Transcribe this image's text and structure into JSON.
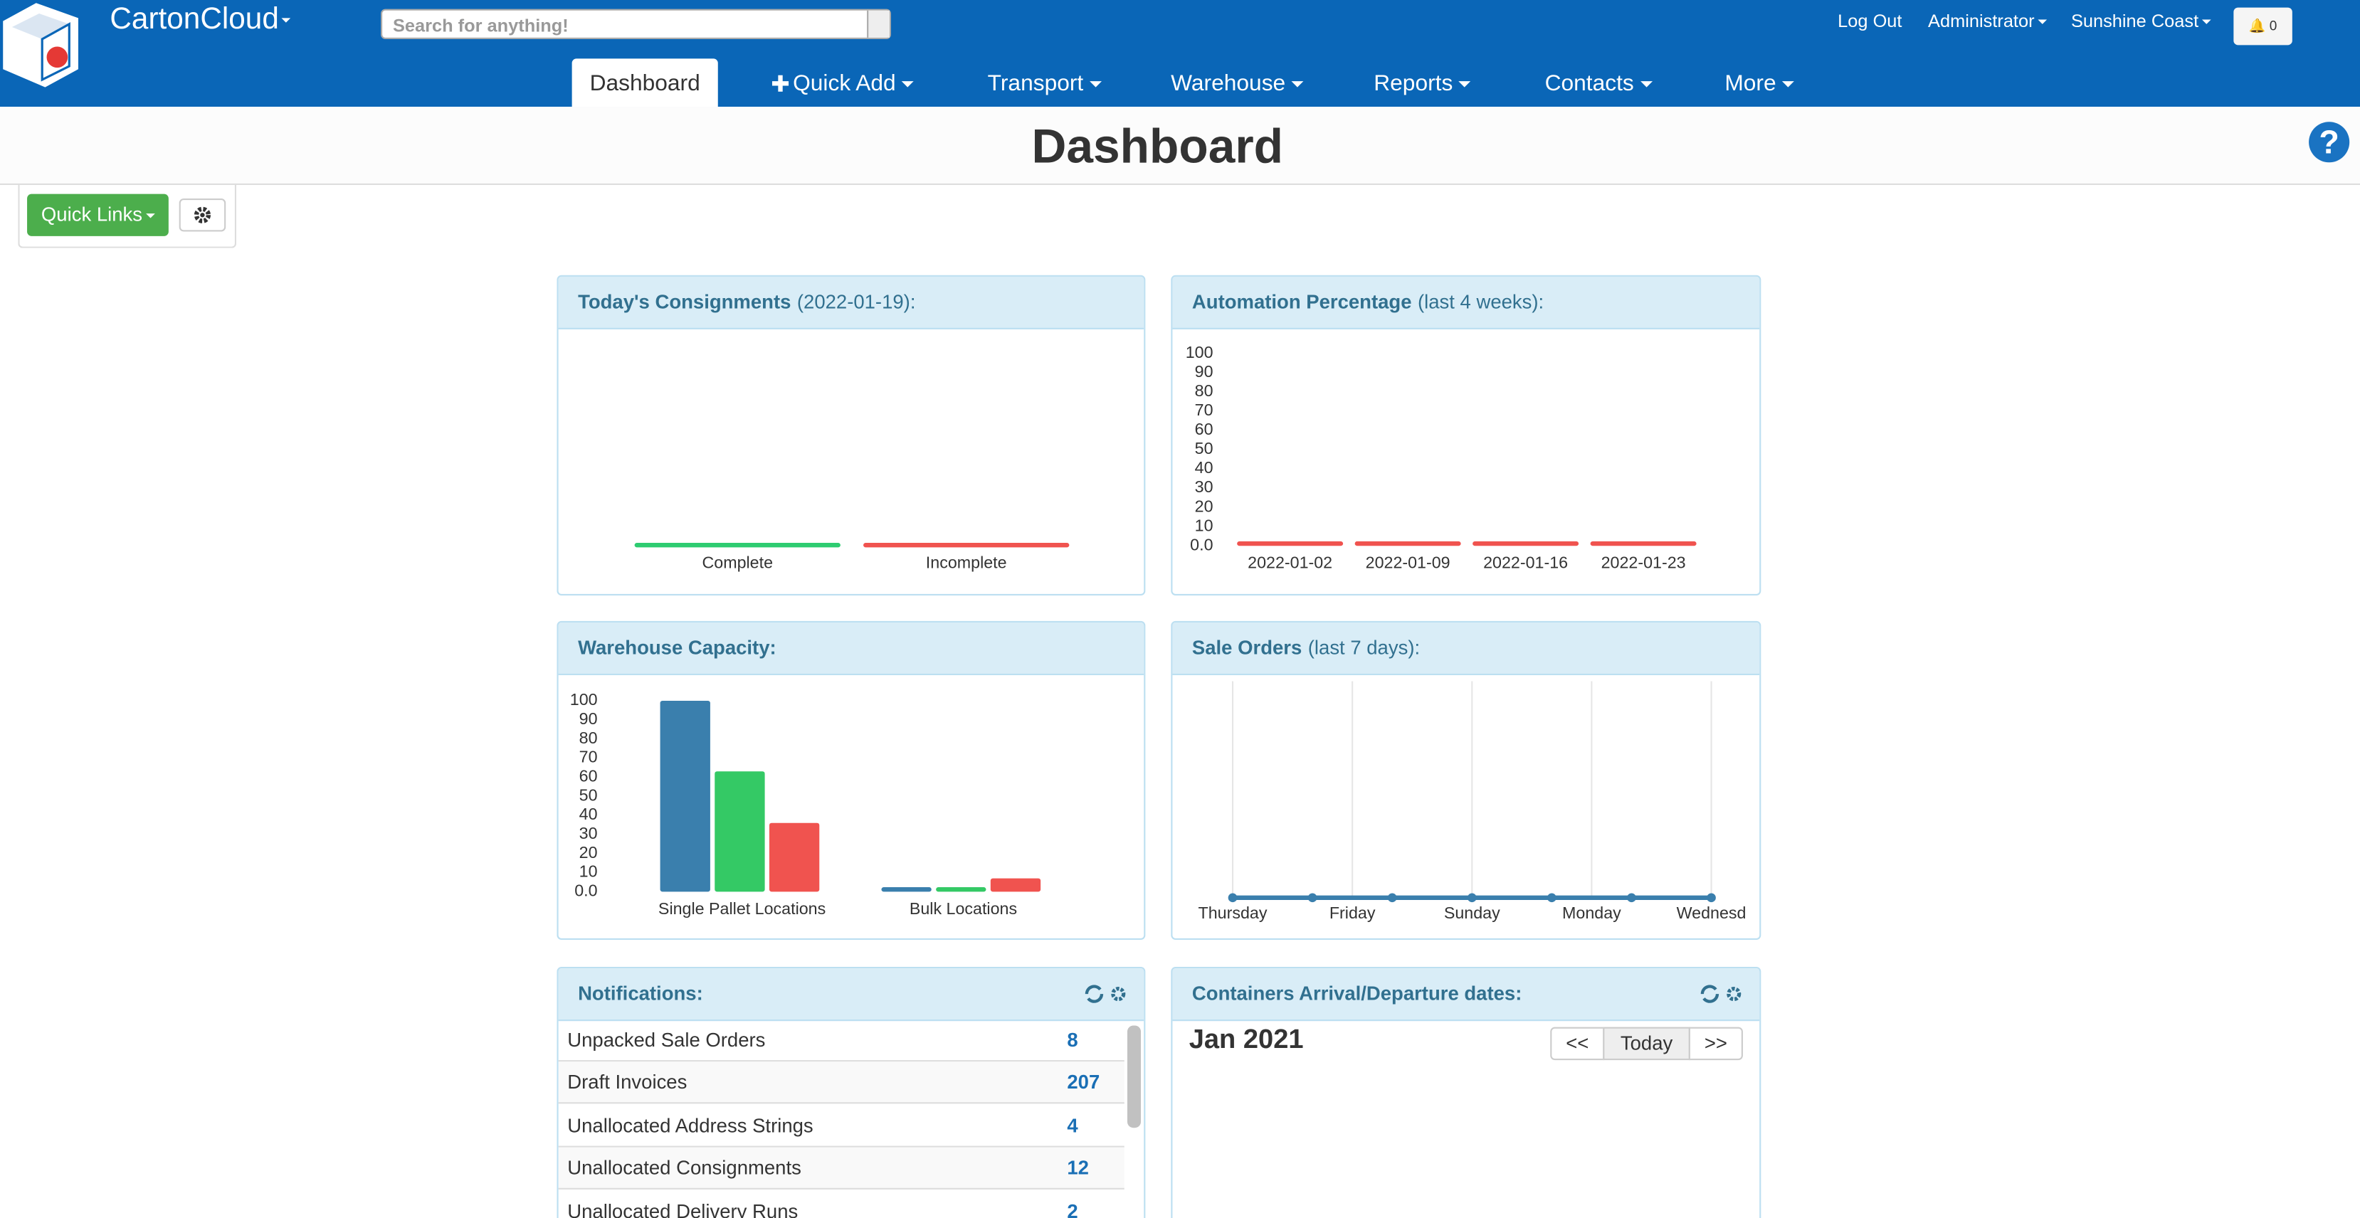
{
  "header": {
    "brand": "CartonCloud",
    "search_placeholder": "Search for anything!",
    "links": [
      "Log Out",
      "Administrator",
      "Sunshine Coast"
    ],
    "notification_count": 0
  },
  "nav": [
    "Dashboard",
    "Quick Add",
    "Transport",
    "Warehouse",
    "Reports",
    "Contacts",
    "More"
  ],
  "page_title": "Dashboard",
  "quick_links": "Quick Links",
  "chart_data": [
    {
      "type": "bar",
      "title": "Today's Consignments",
      "subtitle": "(2022-01-19):",
      "categories": [
        "Complete",
        "Incomplete"
      ],
      "values": [
        0,
        0
      ],
      "colors": [
        "#2ecc71",
        "#f0534f"
      ]
    },
    {
      "type": "bar",
      "title": "Automation Percentage",
      "subtitle": "(last 4 weeks):",
      "categories": [
        "2022-01-02",
        "2022-01-09",
        "2022-01-16",
        "2022-01-23"
      ],
      "values": [
        0,
        0,
        0,
        0
      ],
      "colors": [
        "#f0534f",
        "#f0534f",
        "#f0534f",
        "#f0534f"
      ],
      "ylim": [
        0,
        100
      ],
      "yticks": [
        {
          "value": 0,
          "label": "0.0"
        },
        10,
        20,
        30,
        40,
        50,
        60,
        70,
        80,
        90,
        100
      ]
    },
    {
      "type": "grouped-bar",
      "title": "Warehouse Capacity:",
      "categories": [
        "Single Pallet Locations",
        "Bulk Locations"
      ],
      "series": [
        {
          "color": "#3a7fad",
          "values": [
            100,
            1
          ]
        },
        {
          "color": "#34c965",
          "values": [
            63,
            1
          ]
        },
        {
          "color": "#f0534f",
          "values": [
            36,
            7
          ]
        }
      ],
      "ylim": [
        0,
        100
      ],
      "yticks": [
        {
          "value": 0,
          "label": "0.0"
        },
        10,
        20,
        30,
        40,
        50,
        60,
        70,
        80,
        90,
        100
      ]
    },
    {
      "type": "line",
      "title": "Sale Orders",
      "subtitle": "(last 7 days):",
      "x": [
        0,
        1,
        2,
        3,
        4,
        5,
        6
      ],
      "values": [
        0,
        0,
        0,
        0,
        0,
        0,
        0
      ],
      "color": "#3a7fad",
      "grid": true,
      "xlim": [
        0,
        6
      ],
      "xticks": [
        {
          "value": 0,
          "label": "Thursday"
        },
        {
          "value": 1.5,
          "label": "Friday"
        },
        {
          "value": 3,
          "label": "Sunday"
        },
        {
          "value": 4.5,
          "label": "Monday"
        },
        {
          "value": 6,
          "label": "Wednesd"
        }
      ]
    }
  ],
  "notifications": {
    "title": "Notifications:",
    "rows": [
      [
        "Unpacked Sale Orders",
        8
      ],
      [
        "Draft Invoices",
        207
      ],
      [
        "Unallocated Address Strings",
        4
      ],
      [
        "Unallocated Consignments",
        12
      ],
      [
        "Unallocated Delivery Runs",
        2
      ]
    ]
  },
  "containers": {
    "title": "Containers Arrival/Departure dates:",
    "month": "Jan 2021",
    "buttons": [
      "<<",
      "Today",
      ">>"
    ]
  }
}
